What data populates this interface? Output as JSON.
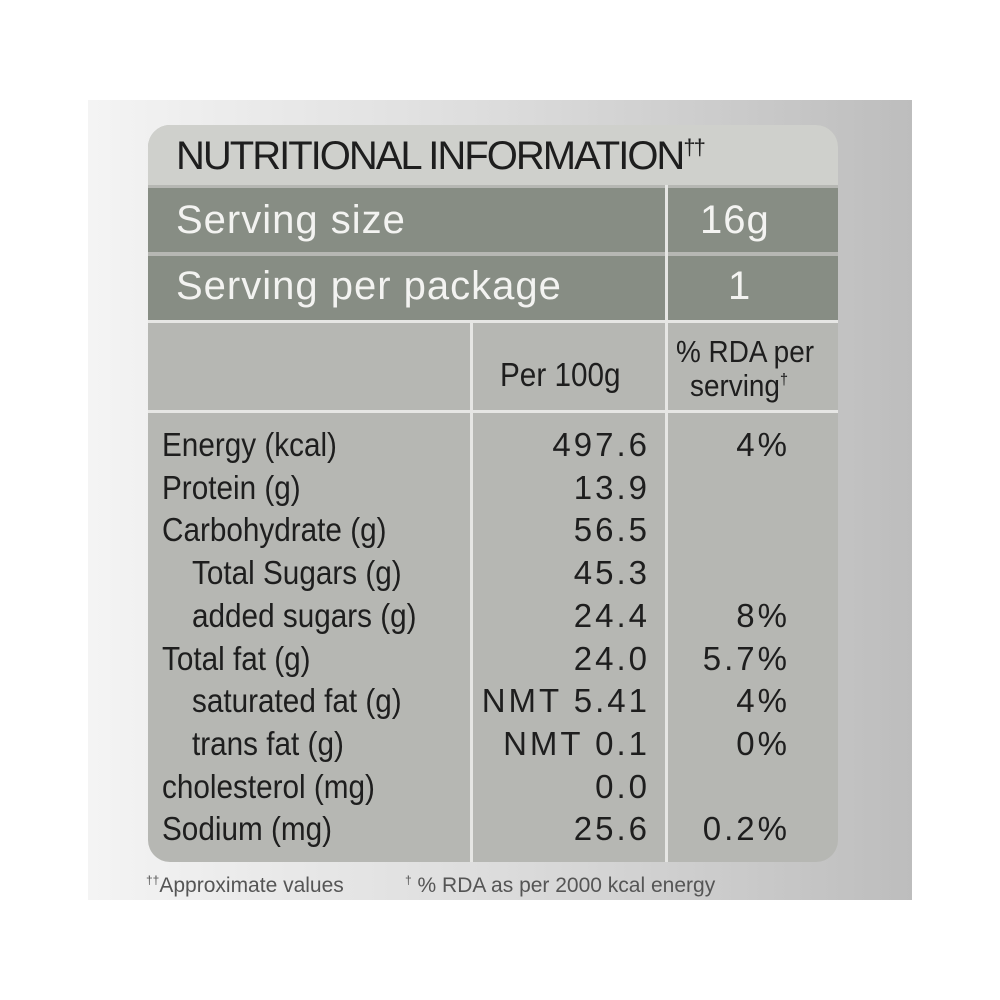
{
  "title": {
    "text": "NUTRITIONAL INFORMATION",
    "mark": "††"
  },
  "serving": [
    {
      "label": "Serving size",
      "value": "16g"
    },
    {
      "label": "Serving per package",
      "value": "1"
    }
  ],
  "header": {
    "per100g": "Per 100g",
    "rda": "% RDA per",
    "rda2": "serving",
    "rda_mark": "†"
  },
  "rows": [
    {
      "name": "Energy (kcal)",
      "per100g": "497.6",
      "rda": "4%"
    },
    {
      "name": "Protein (g)",
      "per100g": "13.9"
    },
    {
      "name": "Carbohydrate (g)",
      "per100g": "56.5"
    },
    {
      "name": "Total Sugars (g)",
      "per100g": "45.3"
    },
    {
      "name": "added sugars (g)",
      "per100g": "24.4",
      "rda": "8%"
    },
    {
      "name": "Total fat (g)",
      "per100g": "24.0",
      "rda": "5.7%"
    },
    {
      "name": "saturated fat (g)",
      "per100g": "NMT 5.41",
      "rda": "4%"
    },
    {
      "name": "trans fat (g)",
      "per100g": "NMT 0.1",
      "rda": "0%"
    },
    {
      "name": "cholesterol (mg)",
      "per100g": "0.0"
    },
    {
      "name": "Sodium (mg)",
      "per100g": "25.6",
      "rda": "0.2%"
    }
  ],
  "footnotes": [
    {
      "mark": "††",
      "text": "Approximate values"
    },
    {
      "mark": "†",
      "text": "% RDA as per 2000 kcal energy"
    }
  ]
}
